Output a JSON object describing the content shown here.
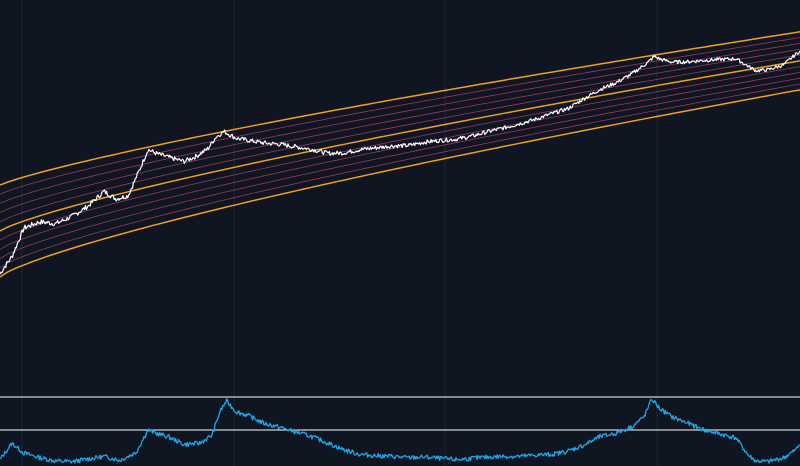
{
  "colors": {
    "background": "#0f1521",
    "grid": "#1f2735",
    "band_outer": "#f0a020",
    "band_inner": "#b0406a",
    "price": "#ffffff",
    "oscillator": "#1fa8e8",
    "threshold": "#ffffff"
  },
  "chart_data": [
    {
      "type": "line",
      "scale": "log",
      "grid": true,
      "legend": "none",
      "x_range": [
        0,
        100
      ],
      "band": {
        "outer_lower_offset": 0,
        "outer_upper_offset": 1,
        "mid_offset": 0.5,
        "inner_offsets": [
          0.1,
          0.2,
          0.3,
          0.4,
          0.6,
          0.7,
          0.8,
          0.9
        ]
      },
      "series": [
        {
          "points": [
            [
              0,
              0.03
            ],
            [
              1.5,
              0.15
            ],
            [
              3,
              0.42
            ],
            [
              5,
              0.43
            ],
            [
              7,
              0.35
            ],
            [
              9,
              0.38
            ],
            [
              11,
              0.45
            ],
            [
              13,
              0.58
            ],
            [
              14.5,
              0.45
            ],
            [
              16,
              0.45
            ],
            [
              17.5,
              0.75
            ],
            [
              18.5,
              0.97
            ],
            [
              19.5,
              0.9
            ],
            [
              21,
              0.82
            ],
            [
              23,
              0.72
            ],
            [
              24.5,
              0.75
            ],
            [
              26,
              0.82
            ],
            [
              27,
              0.95
            ],
            [
              28,
              1.0
            ],
            [
              29.5,
              0.88
            ],
            [
              31,
              0.82
            ],
            [
              33,
              0.74
            ],
            [
              35,
              0.68
            ],
            [
              37,
              0.6
            ],
            [
              39,
              0.52
            ],
            [
              41,
              0.42
            ],
            [
              43,
              0.38
            ],
            [
              45,
              0.38
            ],
            [
              47,
              0.36
            ],
            [
              49,
              0.34
            ],
            [
              51,
              0.3
            ],
            [
              53,
              0.3
            ],
            [
              55,
              0.28
            ],
            [
              57,
              0.25
            ],
            [
              59,
              0.25
            ],
            [
              61,
              0.27
            ],
            [
              63,
              0.28
            ],
            [
              65,
              0.3
            ],
            [
              67,
              0.32
            ],
            [
              69,
              0.36
            ],
            [
              71,
              0.39
            ],
            [
              73,
              0.5
            ],
            [
              75,
              0.6
            ],
            [
              77,
              0.66
            ],
            [
              79,
              0.76
            ],
            [
              81,
              0.9
            ],
            [
              81.8,
              0.98
            ],
            [
              82.5,
              0.92
            ],
            [
              84,
              0.84
            ],
            [
              86,
              0.8
            ],
            [
              88,
              0.78
            ],
            [
              90,
              0.75
            ],
            [
              92,
              0.72
            ],
            [
              93.5,
              0.56
            ],
            [
              94.5,
              0.46
            ],
            [
              96,
              0.44
            ],
            [
              98,
              0.48
            ],
            [
              99,
              0.58
            ],
            [
              100,
              0.67
            ]
          ]
        },
        {
          "points": [
            [
              0,
              0.05
            ],
            [
              1.5,
              0.3
            ],
            [
              3,
              0.15
            ],
            [
              5,
              0.08
            ],
            [
              7,
              0.03
            ],
            [
              9,
              0.02
            ],
            [
              11,
              0.06
            ],
            [
              13,
              0.1
            ],
            [
              15,
              0.04
            ],
            [
              17,
              0.16
            ],
            [
              18.5,
              0.5
            ],
            [
              19.5,
              0.45
            ],
            [
              21,
              0.4
            ],
            [
              23,
              0.28
            ],
            [
              25,
              0.3
            ],
            [
              26.5,
              0.42
            ],
            [
              27.5,
              0.78
            ],
            [
              28.3,
              0.94
            ],
            [
              29.5,
              0.78
            ],
            [
              31,
              0.72
            ],
            [
              33,
              0.6
            ],
            [
              35,
              0.54
            ],
            [
              37,
              0.47
            ],
            [
              39,
              0.4
            ],
            [
              41,
              0.3
            ],
            [
              43,
              0.2
            ],
            [
              45,
              0.13
            ],
            [
              47,
              0.11
            ],
            [
              49,
              0.1
            ],
            [
              51,
              0.08
            ],
            [
              53,
              0.09
            ],
            [
              55,
              0.07
            ],
            [
              57,
              0.05
            ],
            [
              59,
              0.07
            ],
            [
              61,
              0.09
            ],
            [
              63,
              0.1
            ],
            [
              65,
              0.1
            ],
            [
              67,
              0.12
            ],
            [
              69,
              0.13
            ],
            [
              71,
              0.18
            ],
            [
              73,
              0.27
            ],
            [
              75,
              0.4
            ],
            [
              77,
              0.45
            ],
            [
              79,
              0.55
            ],
            [
              80.5,
              0.7
            ],
            [
              81.5,
              0.97
            ],
            [
              82.5,
              0.82
            ],
            [
              84,
              0.7
            ],
            [
              86,
              0.6
            ],
            [
              88,
              0.5
            ],
            [
              90,
              0.44
            ],
            [
              92,
              0.38
            ],
            [
              93.5,
              0.12
            ],
            [
              94.5,
              0.03
            ],
            [
              96,
              0.02
            ],
            [
              98,
              0.08
            ],
            [
              99.5,
              0.2
            ],
            [
              100,
              0.3
            ]
          ]
        }
      ],
      "thresholds": [
        1,
        0.5
      ]
    }
  ]
}
